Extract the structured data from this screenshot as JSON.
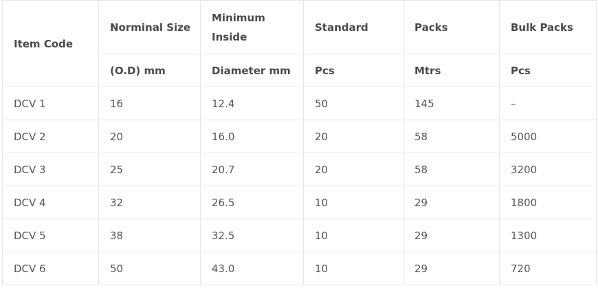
{
  "table": {
    "headers": {
      "item_code": "Item Code",
      "row1": [
        "Norminal Size",
        "Minimum Inside",
        "Standard",
        "Packs",
        "Bulk Packs"
      ],
      "row2": [
        "(O.D) mm",
        "Diameter mm",
        "Pcs",
        "Mtrs",
        "Pcs"
      ]
    },
    "rows": [
      [
        "DCV 1",
        "16",
        "12.4",
        "50",
        "145",
        "–"
      ],
      [
        "DCV 2",
        "20",
        "16.0",
        "20",
        "58",
        "5000"
      ],
      [
        "DCV 3",
        "25",
        "20.7",
        "20",
        "58",
        "3200"
      ],
      [
        "DCV 4",
        "32",
        "26.5",
        "10",
        "29",
        "1800"
      ],
      [
        "DCV 5",
        "38",
        "32.5",
        "10",
        "29",
        "1300"
      ],
      [
        "DCV 6",
        "50",
        "43.0",
        "10",
        "29",
        "720"
      ]
    ]
  }
}
